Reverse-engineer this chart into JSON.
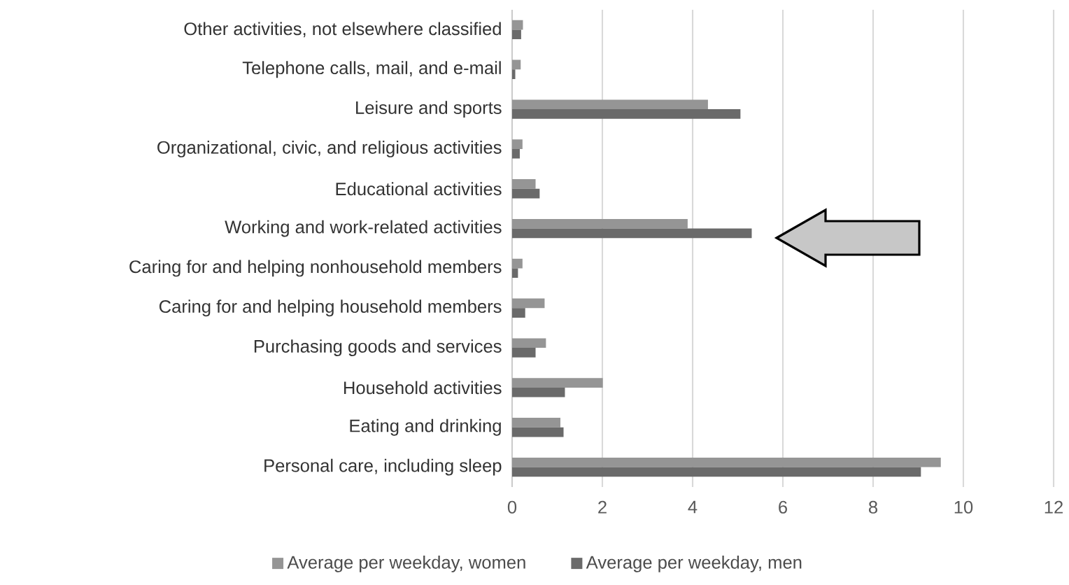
{
  "chart_data": {
    "type": "bar",
    "orientation": "horizontal",
    "categories": [
      "Other activities, not elsewhere classified",
      "Telephone calls, mail, and e-mail",
      "Leisure and sports",
      "Organizational, civic, and religious activities",
      "Educational activities",
      "Working and work-related activities",
      "Caring for and helping nonhousehold members",
      "Caring for and helping household members",
      "Purchasing goods and services",
      "Household activities",
      "Eating and drinking",
      "Personal care, including sleep"
    ],
    "series": [
      {
        "name": "Average per weekday, women",
        "color": "#959595",
        "values": [
          0.24,
          0.19,
          4.34,
          0.23,
          0.52,
          3.89,
          0.23,
          0.72,
          0.75,
          2.01,
          1.07,
          9.5
        ]
      },
      {
        "name": "Average per weekday, men",
        "color": "#6a6a6a",
        "values": [
          0.2,
          0.07,
          5.06,
          0.17,
          0.61,
          5.31,
          0.13,
          0.29,
          0.52,
          1.17,
          1.14,
          9.06
        ]
      }
    ],
    "xlim": [
      0,
      12
    ],
    "xticks": [
      0,
      2,
      4,
      6,
      8,
      10,
      12
    ],
    "grid": "x",
    "legend": "bottom"
  }
}
